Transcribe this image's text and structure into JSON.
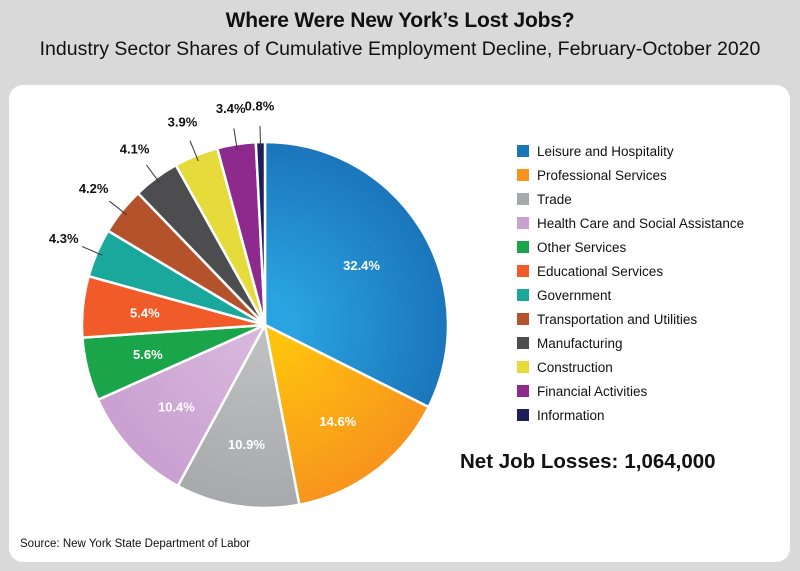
{
  "header": {
    "title": "Where Were New York’s Lost Jobs?",
    "subtitle": "Industry Sector Shares of Cumulative Employment Decline, February-October 2020"
  },
  "chart_data": {
    "type": "pie",
    "title": "Where Were New York’s Lost Jobs?",
    "subtitle": "Industry Sector Shares of Cumulative Employment Decline, February-October 2020",
    "slices": [
      {
        "label": "Leisure and Hospitality",
        "value": 32.4,
        "display": "32.4%",
        "color": "#1b75bb",
        "color_light": "#2aa4e0",
        "label_inside": true
      },
      {
        "label": "Professional  Services",
        "value": 14.6,
        "display": "14.6%",
        "color": "#f7941d",
        "color_light": "#ffc20e",
        "label_inside": true
      },
      {
        "label": "Trade",
        "value": 10.9,
        "display": "10.9%",
        "color": "#a7a9ac",
        "color_light": "#bcbec0",
        "label_inside": true
      },
      {
        "label": "Health Care and Social Assistance",
        "value": 10.4,
        "display": "10.4%",
        "color": "#c9a0d0",
        "color_light": "#d7b6dc",
        "label_inside": true
      },
      {
        "label": "Other Services",
        "value": 5.6,
        "display": "5.6%",
        "color": "#1aa54b",
        "color_light": "#1aa54b",
        "label_inside": true
      },
      {
        "label": "Educational Services",
        "value": 5.4,
        "display": "5.4%",
        "color": "#f15a29",
        "color_light": "#f15a29",
        "label_inside": true
      },
      {
        "label": "Government",
        "value": 4.3,
        "display": "4.3%",
        "color": "#1ba89c",
        "color_light": "#1ba89c",
        "label_inside": false
      },
      {
        "label": "Transportation and Utilities",
        "value": 4.2,
        "display": "4.2%",
        "color": "#b4522b",
        "color_light": "#b4522b",
        "label_inside": false
      },
      {
        "label": "Manufacturing",
        "value": 4.1,
        "display": "4.1%",
        "color": "#4d4d4f",
        "color_light": "#4d4d4f",
        "label_inside": false
      },
      {
        "label": "Construction",
        "value": 3.9,
        "display": "3.9%",
        "color": "#e6db3a",
        "color_light": "#e6db3a",
        "label_inside": false
      },
      {
        "label": "Financial Activities",
        "value": 3.4,
        "display": "3.4%",
        "color": "#8e2a8e",
        "color_light": "#8e2a8e",
        "label_inside": false
      },
      {
        "label": "Information",
        "value": 0.8,
        "display": "0.8%",
        "color": "#1e1e5a",
        "color_light": "#1e1e5a",
        "label_inside": false
      }
    ],
    "start": "12 o'clock",
    "direction": "clockwise",
    "legend_placement": "right"
  },
  "summary": {
    "net_label": "Net Job Losses:",
    "net_value": "1,064,000"
  },
  "footer": {
    "source": "Source: New York State Department of Labor"
  }
}
